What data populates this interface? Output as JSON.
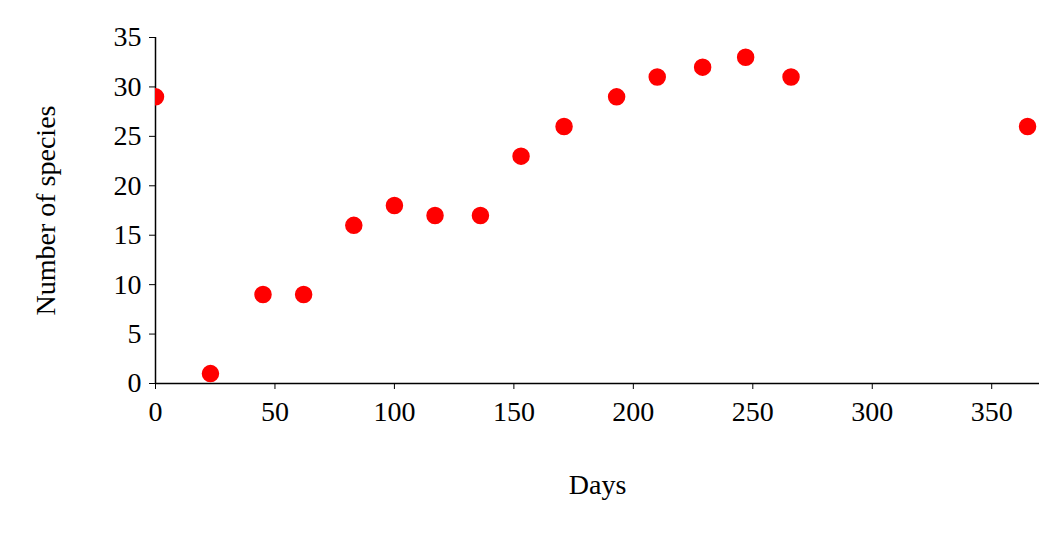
{
  "chart_data": {
    "type": "scatter",
    "x_label": "Days",
    "y_label": "Number of species",
    "x": [
      0,
      23,
      45,
      62,
      83,
      100,
      117,
      136,
      153,
      171,
      193,
      210,
      229,
      247,
      266,
      365
    ],
    "values": [
      29,
      1,
      9,
      9,
      16,
      18,
      17,
      17,
      23,
      26,
      29,
      31,
      32,
      33,
      31,
      26
    ],
    "color": "#ff0000",
    "marker": "circle",
    "xlim": [
      0,
      370
    ],
    "xticks": [
      0,
      50,
      100,
      150,
      200,
      250,
      300,
      350
    ],
    "ylim": [
      0,
      35
    ],
    "yticks": [
      0,
      5,
      10,
      15,
      20,
      25,
      30,
      35
    ],
    "grid": false
  }
}
